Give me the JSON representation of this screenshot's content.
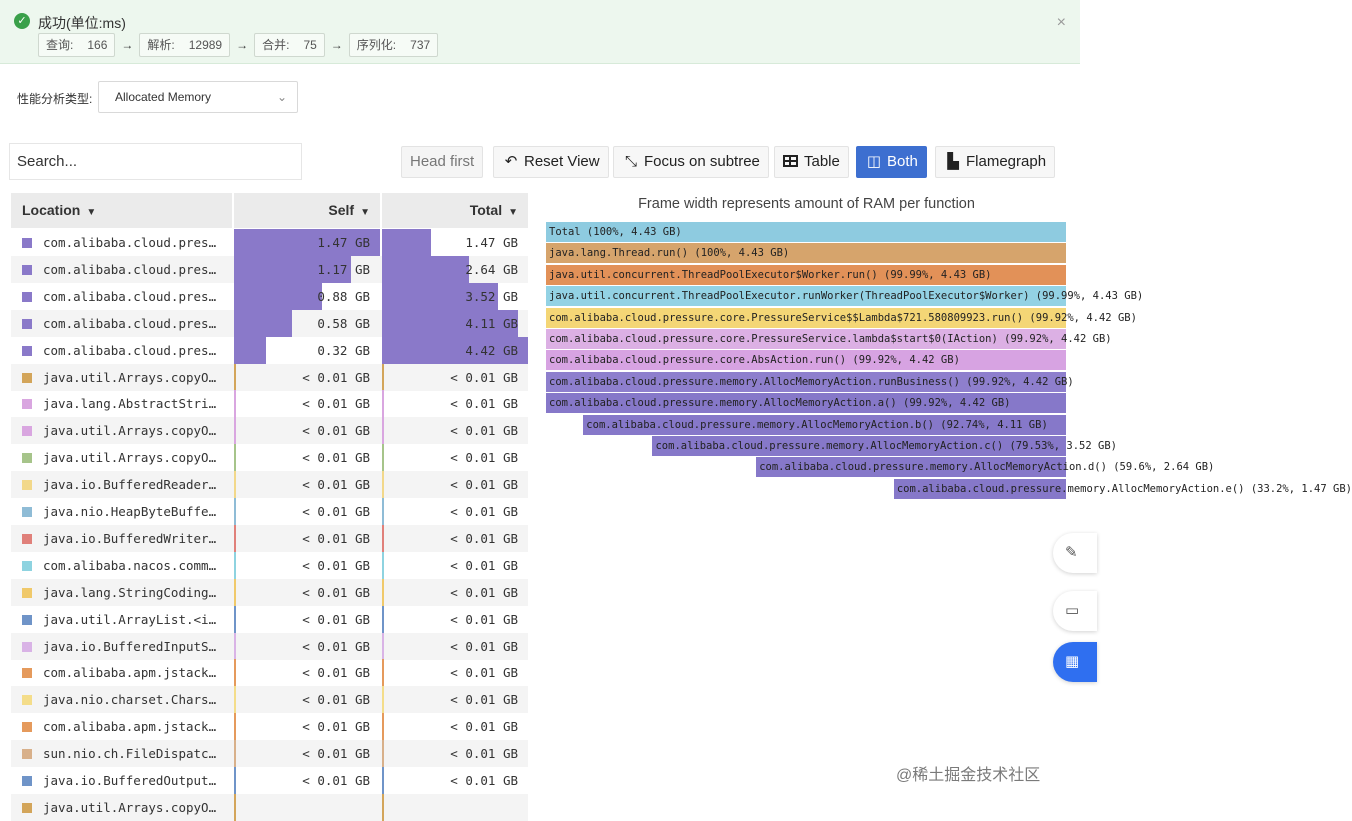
{
  "banner": {
    "title": "成功(单位:ms)",
    "steps": [
      {
        "label": "查询:",
        "value": "166"
      },
      {
        "label": "解析:",
        "value": "12989"
      },
      {
        "label": "合并:",
        "value": "75"
      },
      {
        "label": "序列化:",
        "value": "737"
      }
    ],
    "arrow": "→",
    "close": "×"
  },
  "analysis": {
    "label": "性能分析类型:",
    "selected": "Allocated Memory"
  },
  "toolbar": {
    "search_placeholder": "Search...",
    "head_first": "Head first",
    "reset_view": "Reset View",
    "focus_subtree": "Focus on subtree",
    "table": "Table",
    "both": "Both",
    "flamegraph": "Flamegraph"
  },
  "table": {
    "columns": {
      "location": "Location",
      "self": "Self",
      "total": "Total"
    },
    "rows": [
      {
        "name": "com.alibaba.cloud.pres…",
        "self": "1.47 GB",
        "total": "1.47 GB",
        "self_frac": 1.0,
        "total_frac": 0.333,
        "color": "#8a79c9"
      },
      {
        "name": "com.alibaba.cloud.pres…",
        "self": "1.17 GB",
        "total": "2.64 GB",
        "self_frac": 0.8,
        "total_frac": 0.597,
        "color": "#8a79c9"
      },
      {
        "name": "com.alibaba.cloud.pres…",
        "self": "0.88 GB",
        "total": "3.52 GB",
        "self_frac": 0.6,
        "total_frac": 0.796,
        "color": "#8a79c9"
      },
      {
        "name": "com.alibaba.cloud.pres…",
        "self": "0.58 GB",
        "total": "4.11 GB",
        "self_frac": 0.4,
        "total_frac": 0.93,
        "color": "#8a79c9"
      },
      {
        "name": "com.alibaba.cloud.pres…",
        "self": "0.32 GB",
        "total": "4.42 GB",
        "self_frac": 0.22,
        "total_frac": 1.0,
        "color": "#8a79c9"
      },
      {
        "name": "java.util.Arrays.copyO…",
        "self": "< 0.01 GB",
        "total": "< 0.01 GB",
        "self_frac": 0.0,
        "total_frac": 0.0,
        "color": "#d3a55a"
      },
      {
        "name": "java.lang.AbstractStri…",
        "self": "< 0.01 GB",
        "total": "< 0.01 GB",
        "self_frac": 0.0,
        "total_frac": 0.0,
        "color": "#d9a6e0"
      },
      {
        "name": "java.util.Arrays.copyO…",
        "self": "< 0.01 GB",
        "total": "< 0.01 GB",
        "self_frac": 0.0,
        "total_frac": 0.0,
        "color": "#d9a6e0"
      },
      {
        "name": "java.util.Arrays.copyO…",
        "self": "< 0.01 GB",
        "total": "< 0.01 GB",
        "self_frac": 0.0,
        "total_frac": 0.0,
        "color": "#a6c48a"
      },
      {
        "name": "java.io.BufferedReader…",
        "self": "< 0.01 GB",
        "total": "< 0.01 GB",
        "self_frac": 0.0,
        "total_frac": 0.0,
        "color": "#f2d88a"
      },
      {
        "name": "java.nio.HeapByteBuffe…",
        "self": "< 0.01 GB",
        "total": "< 0.01 GB",
        "self_frac": 0.0,
        "total_frac": 0.0,
        "color": "#8fbcd6"
      },
      {
        "name": "java.io.BufferedWriter…",
        "self": "< 0.01 GB",
        "total": "< 0.01 GB",
        "self_frac": 0.0,
        "total_frac": 0.0,
        "color": "#e0807a"
      },
      {
        "name": "com.alibaba.nacos.comm…",
        "self": "< 0.01 GB",
        "total": "< 0.01 GB",
        "self_frac": 0.0,
        "total_frac": 0.0,
        "color": "#8ed3e0"
      },
      {
        "name": "java.lang.StringCoding…",
        "self": "< 0.01 GB",
        "total": "< 0.01 GB",
        "self_frac": 0.0,
        "total_frac": 0.0,
        "color": "#f0c96a"
      },
      {
        "name": "java.util.ArrayList.<i…",
        "self": "< 0.01 GB",
        "total": "< 0.01 GB",
        "self_frac": 0.0,
        "total_frac": 0.0,
        "color": "#6f94c8"
      },
      {
        "name": "java.io.BufferedInputS…",
        "self": "< 0.01 GB",
        "total": "< 0.01 GB",
        "self_frac": 0.0,
        "total_frac": 0.0,
        "color": "#d9b3e6"
      },
      {
        "name": "com.alibaba.apm.jstack…",
        "self": "< 0.01 GB",
        "total": "< 0.01 GB",
        "self_frac": 0.0,
        "total_frac": 0.0,
        "color": "#e59a5c"
      },
      {
        "name": "java.nio.charset.Chars…",
        "self": "< 0.01 GB",
        "total": "< 0.01 GB",
        "self_frac": 0.0,
        "total_frac": 0.0,
        "color": "#f4dd8a"
      },
      {
        "name": "com.alibaba.apm.jstack…",
        "self": "< 0.01 GB",
        "total": "< 0.01 GB",
        "self_frac": 0.0,
        "total_frac": 0.0,
        "color": "#e59a5c"
      },
      {
        "name": "sun.nio.ch.FileDispatc…",
        "self": "< 0.01 GB",
        "total": "< 0.01 GB",
        "self_frac": 0.0,
        "total_frac": 0.0,
        "color": "#d8b08a"
      },
      {
        "name": "java.io.BufferedOutput…",
        "self": "< 0.01 GB",
        "total": "< 0.01 GB",
        "self_frac": 0.0,
        "total_frac": 0.0,
        "color": "#6f94c8"
      },
      {
        "name": "java.util.Arrays.copyO…",
        "self": "",
        "total": "",
        "self_frac": 0.0,
        "total_frac": 0.0,
        "color": "#d3a55a"
      }
    ]
  },
  "flamegraph": {
    "title": "Frame width represents amount of RAM per function",
    "frames": [
      {
        "label": "Total (100%, 4.43 GB)",
        "start": 0.0,
        "width": 1.0,
        "color": "#8ecbe0"
      },
      {
        "label": "java.lang.Thread.run() (100%, 4.43 GB)",
        "start": 0.0,
        "width": 1.0,
        "color": "#d6a46c"
      },
      {
        "label": "java.util.concurrent.ThreadPoolExecutor$Worker.run() (99.99%, 4.43 GB)",
        "start": 0.0,
        "width": 1.0,
        "color": "#e29158"
      },
      {
        "label": "java.util.concurrent.ThreadPoolExecutor.runWorker(ThreadPoolExecutor$Worker) (99.99%, 4.43 GB)",
        "start": 0.0,
        "width": 1.0,
        "color": "#93d2e4"
      },
      {
        "label": "com.alibaba.cloud.pressure.core.PressureService$$Lambda$721.580809923.run() (99.92%, 4.42 GB)",
        "start": 0.0,
        "width": 1.0,
        "color": "#f4d676"
      },
      {
        "label": "com.alibaba.cloud.pressure.core.PressureService.lambda$start$0(IAction) (99.92%, 4.42 GB)",
        "start": 0.0,
        "width": 1.0,
        "color": "#dcb0e4"
      },
      {
        "label": "com.alibaba.cloud.pressure.core.AbsAction.run() (99.92%, 4.42 GB)",
        "start": 0.0,
        "width": 1.0,
        "color": "#d7a3e2"
      },
      {
        "label": "com.alibaba.cloud.pressure.memory.AllocMemoryAction.runBusiness() (99.92%, 4.42 GB)",
        "start": 0.0,
        "width": 1.0,
        "color": "#8e7fcd"
      },
      {
        "label": "com.alibaba.cloud.pressure.memory.AllocMemoryAction.a() (99.92%, 4.42 GB)",
        "start": 0.0,
        "width": 1.0,
        "color": "#8678c9"
      },
      {
        "label": "com.alibaba.cloud.pressure.memory.AllocMemoryAction.b() (92.74%, 4.11 GB)",
        "start": 0.0716,
        "width": 0.9284,
        "color": "#8678c9"
      },
      {
        "label": "com.alibaba.cloud.pressure.memory.AllocMemoryAction.c() (79.53%, 3.52 GB)",
        "start": 0.2044,
        "width": 0.7956,
        "color": "#8678c9"
      },
      {
        "label": "com.alibaba.cloud.pressure.memory.AllocMemoryAction.d() (59.6%, 2.64 GB)",
        "start": 0.4035,
        "width": 0.5965,
        "color": "#8678c9"
      },
      {
        "label": "com.alibaba.cloud.pressure.memory.AllocMemoryAction.e() (33.2%, 1.47 GB)",
        "start": 0.6676,
        "width": 0.3324,
        "color": "#8678c9"
      }
    ]
  },
  "side_buttons": [
    {
      "icon": "edit-icon",
      "glyph": "✎"
    },
    {
      "icon": "comment-icon",
      "glyph": "▭"
    },
    {
      "icon": "apps-icon",
      "glyph": "▦"
    }
  ],
  "watermark": "@稀土掘金技术社区"
}
